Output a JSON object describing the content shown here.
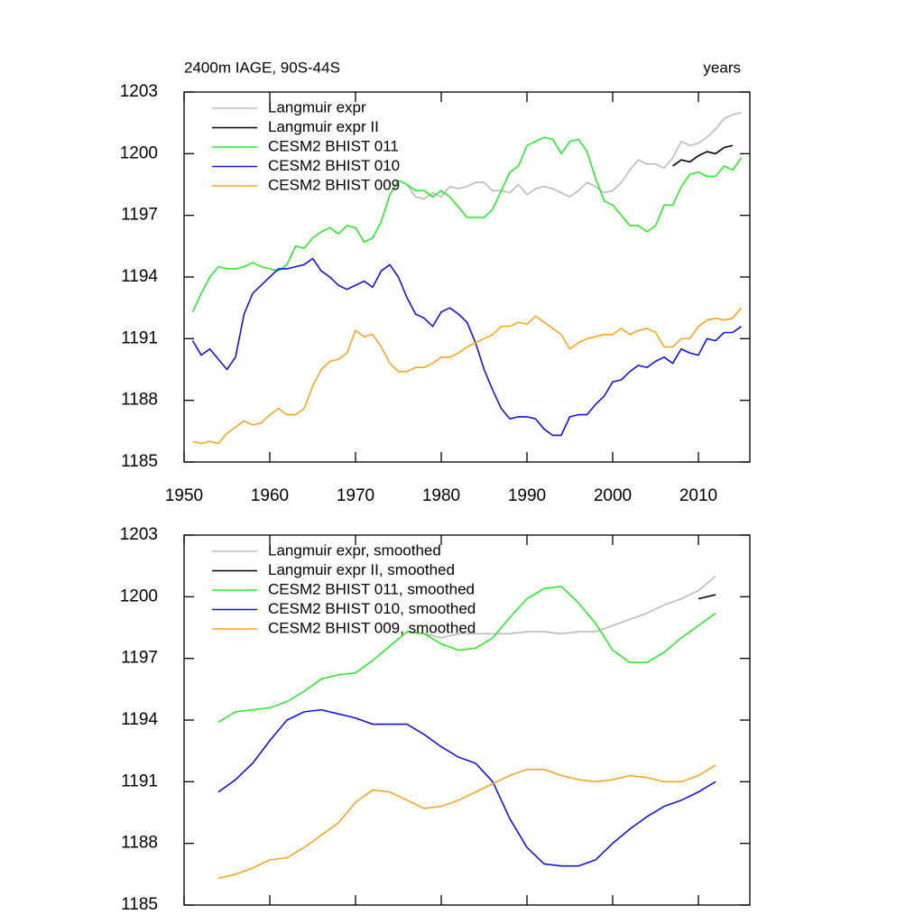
{
  "chart_data": [
    {
      "type": "line",
      "title": "2400m IAGE, 90S-44S",
      "title_right": "years",
      "x": [
        1951,
        1952,
        1953,
        1954,
        1955,
        1956,
        1957,
        1958,
        1959,
        1960,
        1961,
        1962,
        1963,
        1964,
        1965,
        1966,
        1967,
        1968,
        1969,
        1970,
        1971,
        1972,
        1973,
        1974,
        1975,
        1976,
        1977,
        1978,
        1979,
        1980,
        1981,
        1982,
        1983,
        1984,
        1985,
        1986,
        1987,
        1988,
        1989,
        1990,
        1991,
        1992,
        1993,
        1994,
        1995,
        1996,
        1997,
        1998,
        1999,
        2000,
        2001,
        2002,
        2003,
        2004,
        2005,
        2006,
        2007,
        2008,
        2009,
        2010,
        2011,
        2012,
        2013,
        2014,
        2015
      ],
      "xlim": [
        1950,
        2016
      ],
      "xticks": [
        1950,
        1960,
        1970,
        1980,
        1990,
        2000,
        2010
      ],
      "ylim": [
        1185,
        1203
      ],
      "yticks": [
        1185,
        1188,
        1191,
        1194,
        1197,
        1200,
        1203
      ],
      "legend": "upper left",
      "series": [
        {
          "name": "Langmuir expr",
          "color": "#bbbbbb",
          "values": [
            null,
            null,
            null,
            null,
            null,
            null,
            null,
            null,
            null,
            null,
            null,
            null,
            null,
            null,
            null,
            null,
            null,
            null,
            null,
            null,
            null,
            null,
            null,
            null,
            null,
            1198.5,
            1197.9,
            1197.8,
            1198.1,
            1197.9,
            1198.4,
            1198.3,
            1198.4,
            1198.6,
            1198.6,
            1198.2,
            1198.2,
            1198.1,
            1198.5,
            1198.0,
            1198.3,
            1198.4,
            1198.3,
            1198.1,
            1197.9,
            1198.2,
            1198.6,
            1198.4,
            1198.1,
            1198.2,
            1198.6,
            1199.2,
            1199.7,
            1199.5,
            1199.5,
            1199.3,
            1199.8,
            1200.6,
            1200.4,
            1200.5,
            1200.8,
            1201.2,
            1201.7,
            1201.9,
            1202.0
          ]
        },
        {
          "name": "Langmuir expr II",
          "color": "#000000",
          "values": [
            null,
            null,
            null,
            null,
            null,
            null,
            null,
            null,
            null,
            null,
            null,
            null,
            null,
            null,
            null,
            null,
            null,
            null,
            null,
            null,
            null,
            null,
            null,
            null,
            null,
            null,
            null,
            null,
            null,
            null,
            null,
            null,
            null,
            null,
            null,
            null,
            null,
            null,
            null,
            null,
            null,
            null,
            null,
            null,
            null,
            null,
            null,
            null,
            null,
            null,
            null,
            null,
            null,
            null,
            null,
            null,
            1199.4,
            1199.7,
            1199.6,
            1199.9,
            1200.1,
            1200.0,
            1200.3,
            1200.4,
            null
          ]
        },
        {
          "name": "CESM2 BHIST 011",
          "color": "#2ee82e",
          "values": [
            1192.3,
            1193.2,
            1194.0,
            1194.5,
            1194.4,
            1194.4,
            1194.5,
            1194.7,
            1194.5,
            1194.4,
            1194.3,
            1194.6,
            1195.5,
            1195.4,
            1195.9,
            1196.2,
            1196.4,
            1196.1,
            1196.5,
            1196.4,
            1195.7,
            1195.9,
            1196.7,
            1198.0,
            1198.7,
            1198.5,
            1198.2,
            1198.2,
            1197.9,
            1198.2,
            1197.9,
            1197.4,
            1196.9,
            1196.9,
            1196.9,
            1197.3,
            1198.2,
            1199.1,
            1199.4,
            1200.4,
            1200.6,
            1200.8,
            1200.7,
            1200.0,
            1200.6,
            1200.7,
            1200.1,
            1198.8,
            1197.7,
            1197.5,
            1197.0,
            1196.5,
            1196.5,
            1196.2,
            1196.5,
            1197.5,
            1197.5,
            1198.4,
            1199.0,
            1199.1,
            1198.9,
            1198.9,
            1199.4,
            1199.2,
            1199.8
          ]
        },
        {
          "name": "CESM2 BHIST 010",
          "color": "#1414d2",
          "values": [
            1190.9,
            1190.2,
            1190.5,
            1190.0,
            1189.5,
            1190.1,
            1192.2,
            1193.2,
            1193.6,
            1194.0,
            1194.4,
            1194.4,
            1194.5,
            1194.6,
            1194.9,
            1194.3,
            1194.0,
            1193.6,
            1193.4,
            1193.6,
            1193.8,
            1193.5,
            1194.3,
            1194.6,
            1194.0,
            1193.0,
            1192.2,
            1192.0,
            1191.6,
            1192.3,
            1192.5,
            1192.2,
            1191.8,
            1190.8,
            1189.5,
            1188.5,
            1187.6,
            1187.1,
            1187.2,
            1187.2,
            1187.1,
            1186.6,
            1186.3,
            1186.3,
            1187.2,
            1187.3,
            1187.3,
            1187.8,
            1188.2,
            1188.9,
            1189.0,
            1189.4,
            1189.7,
            1189.6,
            1189.9,
            1190.1,
            1189.8,
            1190.5,
            1190.3,
            1190.2,
            1191.0,
            1190.9,
            1191.3,
            1191.3,
            1191.6
          ]
        },
        {
          "name": "CESM2 BHIST 009",
          "color": "#f5a623",
          "values": [
            1186.0,
            1185.9,
            1186.0,
            1185.9,
            1186.4,
            1186.7,
            1187.0,
            1186.8,
            1186.9,
            1187.3,
            1187.6,
            1187.3,
            1187.3,
            1187.6,
            1188.7,
            1189.5,
            1189.9,
            1190.0,
            1190.3,
            1191.4,
            1191.1,
            1191.2,
            1190.6,
            1189.8,
            1189.4,
            1189.4,
            1189.6,
            1189.6,
            1189.8,
            1190.1,
            1190.1,
            1190.3,
            1190.6,
            1190.8,
            1191.0,
            1191.2,
            1191.6,
            1191.6,
            1191.8,
            1191.7,
            1192.1,
            1191.8,
            1191.5,
            1191.2,
            1190.5,
            1190.8,
            1191.0,
            1191.1,
            1191.2,
            1191.2,
            1191.5,
            1191.2,
            1191.4,
            1191.5,
            1191.3,
            1190.6,
            1190.6,
            1191.0,
            1191.0,
            1191.6,
            1191.9,
            1192.0,
            1191.9,
            1192.0,
            1192.5
          ]
        }
      ]
    },
    {
      "type": "line",
      "x": [
        1954,
        1956,
        1958,
        1960,
        1962,
        1964,
        1966,
        1968,
        1970,
        1972,
        1974,
        1976,
        1978,
        1980,
        1982,
        1984,
        1986,
        1988,
        1990,
        1992,
        1994,
        1996,
        1998,
        2000,
        2002,
        2004,
        2006,
        2008,
        2010,
        2012
      ],
      "xlim": [
        1950,
        2016
      ],
      "xticks": [
        1950,
        1960,
        1970,
        1980,
        1990,
        2000,
        2010
      ],
      "xtick_labels": false,
      "ylim": [
        1185,
        1203
      ],
      "yticks": [
        1185,
        1188,
        1191,
        1194,
        1197,
        1200,
        1203
      ],
      "legend": "upper left",
      "series": [
        {
          "name": "Langmuir expr, smoothed",
          "color": "#bbbbbb",
          "values": [
            null,
            null,
            null,
            null,
            null,
            null,
            null,
            null,
            null,
            null,
            null,
            null,
            1198.2,
            1198.0,
            1198.2,
            1198.2,
            1198.2,
            1198.2,
            1198.3,
            1198.3,
            1198.2,
            1198.3,
            1198.3,
            1198.6,
            1198.9,
            1199.2,
            1199.6,
            1199.9,
            1200.3,
            1201.0
          ]
        },
        {
          "name": "Langmuir expr II, smoothed",
          "color": "#000000",
          "values": [
            null,
            null,
            null,
            null,
            null,
            null,
            null,
            null,
            null,
            null,
            null,
            null,
            null,
            null,
            null,
            null,
            null,
            null,
            null,
            null,
            null,
            null,
            null,
            null,
            null,
            null,
            null,
            null,
            1199.9,
            1200.1
          ]
        },
        {
          "name": "CESM2 BHIST 011, smoothed",
          "color": "#2ee82e",
          "values": [
            1193.9,
            1194.4,
            1194.5,
            1194.6,
            1194.9,
            1195.4,
            1196.0,
            1196.2,
            1196.3,
            1196.9,
            1197.6,
            1198.3,
            1198.2,
            1197.7,
            1197.4,
            1197.5,
            1198.0,
            1199.0,
            1199.9,
            1200.4,
            1200.5,
            1199.7,
            1198.7,
            1197.4,
            1196.8,
            1196.8,
            1197.3,
            1198.0,
            1198.6,
            1199.2
          ]
        },
        {
          "name": "CESM2 BHIST 010, smoothed",
          "color": "#1414d2",
          "values": [
            1190.5,
            1191.1,
            1191.9,
            1193.0,
            1194.0,
            1194.4,
            1194.5,
            1194.3,
            1194.1,
            1193.8,
            1193.8,
            1193.8,
            1193.3,
            1192.7,
            1192.2,
            1191.9,
            1191.0,
            1189.2,
            1187.8,
            1187.0,
            1186.9,
            1186.9,
            1187.2,
            1188.0,
            1188.7,
            1189.3,
            1189.8,
            1190.1,
            1190.5,
            1191.0
          ]
        },
        {
          "name": "CESM2 BHIST 009, smoothed",
          "color": "#f5a623",
          "values": [
            1186.3,
            1186.5,
            1186.8,
            1187.2,
            1187.3,
            1187.8,
            1188.4,
            1189.0,
            1190.0,
            1190.6,
            1190.5,
            1190.1,
            1189.7,
            1189.8,
            1190.1,
            1190.5,
            1190.9,
            1191.3,
            1191.6,
            1191.6,
            1191.3,
            1191.1,
            1191.0,
            1191.1,
            1191.3,
            1191.2,
            1191.0,
            1191.0,
            1191.3,
            1191.8
          ]
        }
      ]
    }
  ]
}
